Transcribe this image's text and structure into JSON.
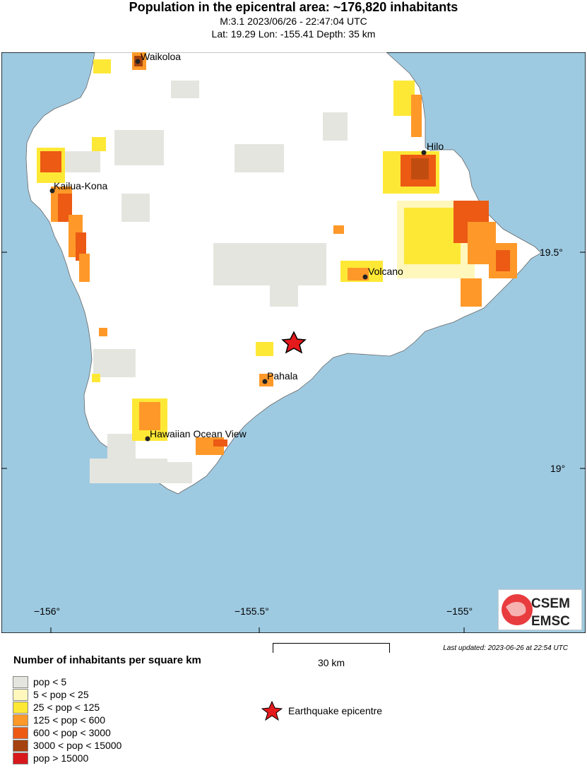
{
  "header": {
    "title": "Population in the epicentral area: ~176,820 inhabitants",
    "event_line": "M:3.1 2023/06/26 - 22:47:04 UTC",
    "location_line": "Lat: 19.29 Lon: -155.41 Depth: 35 km"
  },
  "map": {
    "places": [
      {
        "name": "Waikoloa"
      },
      {
        "name": "Hilo"
      },
      {
        "name": "Kailua-Kona"
      },
      {
        "name": "Volcano"
      },
      {
        "name": "Pahala"
      },
      {
        "name": "Hawaiian Ocean View"
      }
    ],
    "lat_ticks": [
      "19.5°",
      "19°"
    ],
    "lon_ticks": [
      "−156°",
      "−155.5°",
      "−155°"
    ],
    "epicenter": {
      "lat": 19.29,
      "lon": -155.41
    },
    "colors": {
      "ocean": "#9ecae1",
      "land": "#ffffff",
      "epicenter": "#e41a1c"
    }
  },
  "scale": {
    "label": "30 km"
  },
  "updated": "Last updated: 2023-06-26 at 22:54 UTC",
  "legend": {
    "title": "Number of inhabitants per square km",
    "items": [
      {
        "label": "pop < 5",
        "color": "#e5e5e0"
      },
      {
        "label": "5 < pop < 25",
        "color": "#fff7bc"
      },
      {
        "label": "25 < pop < 125",
        "color": "#fee836"
      },
      {
        "label": "125 < pop < 600",
        "color": "#fe9929"
      },
      {
        "label": "600 < pop < 3000",
        "color": "#ec5a14"
      },
      {
        "label": "3000 < pop < 15000",
        "color": "#a5420d"
      },
      {
        "label": "pop > 15000",
        "color": "#d7191c"
      }
    ],
    "epicentre_label": "Earthquake epicentre"
  },
  "logo": {
    "line1": "CSEM",
    "line2": "EMSC"
  }
}
